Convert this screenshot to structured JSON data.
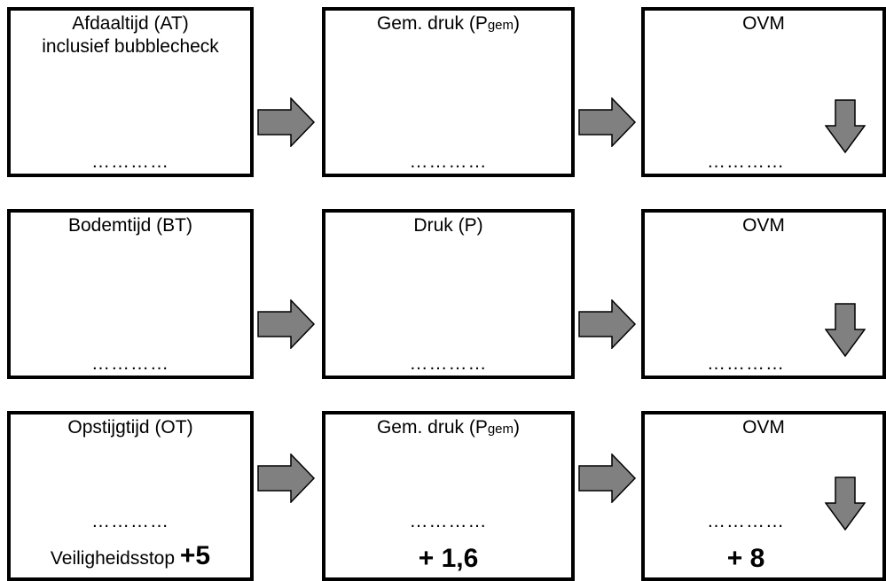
{
  "rows": [
    {
      "boxes": [
        {
          "title_line1": "Afdaaltijd (AT)",
          "title_line2": "inclusief bubblecheck",
          "dots": "…………"
        },
        {
          "title_main": "Gem. druk (P",
          "title_sub": "gem",
          "title_end": ")",
          "dots": "…………"
        },
        {
          "title_main": "OVM",
          "dots": "…………"
        }
      ]
    },
    {
      "boxes": [
        {
          "title_main": "Bodemtijd (BT)",
          "dots": "…………"
        },
        {
          "title_main": "Druk (P)",
          "dots": "…………"
        },
        {
          "title_main": "OVM",
          "dots": "…………"
        }
      ]
    },
    {
      "boxes": [
        {
          "title_main": "Opstijgtijd (OT)",
          "dots": "…………",
          "extra_label": "Veiligheidsstop ",
          "extra_value": "+5"
        },
        {
          "title_main": "Gem. druk (P",
          "title_sub": "gem",
          "title_end": ")",
          "dots": "…………",
          "extra_value": "+ 1,6"
        },
        {
          "title_main": "OVM",
          "dots": "…………",
          "extra_value": "+ 8"
        }
      ]
    }
  ],
  "colors": {
    "arrow_fill": "#808080",
    "border": "#000000"
  },
  "icons": [
    "arrow-right-icon",
    "arrow-down-icon"
  ]
}
